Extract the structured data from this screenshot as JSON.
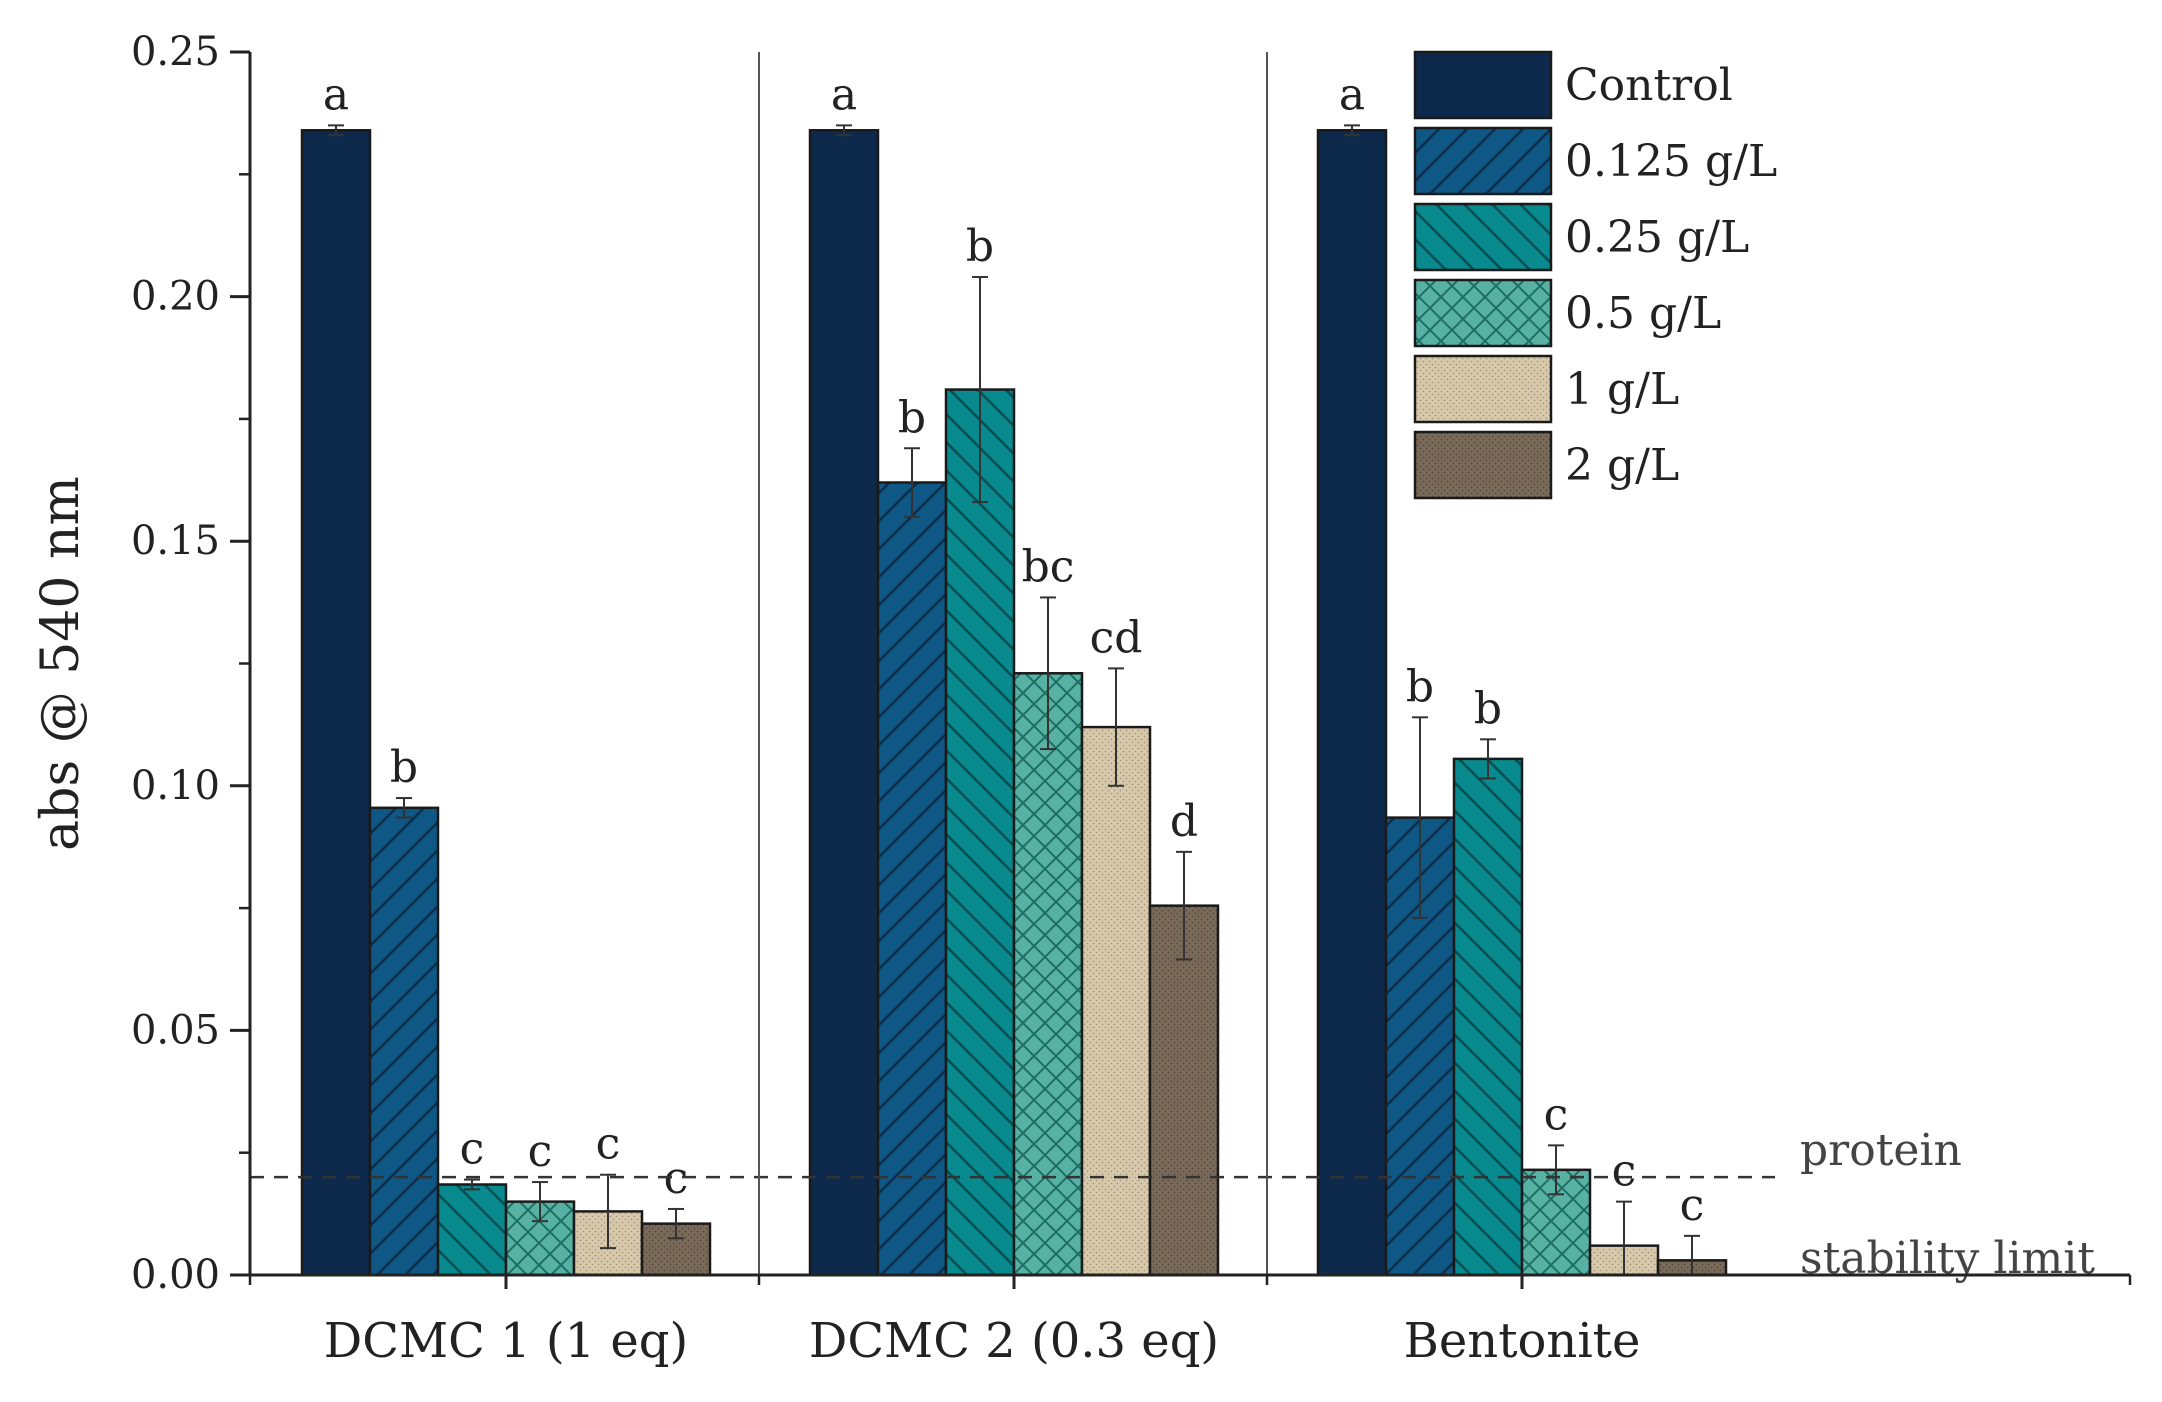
{
  "chart_data": {
    "type": "bar",
    "title": "",
    "xlabel": "",
    "ylabel": "abs @ 540 nm",
    "ylim": [
      0,
      0.25
    ],
    "yticks": [
      "0.00",
      "0.05",
      "0.10",
      "0.15",
      "0.20",
      "0.25"
    ],
    "categories": [
      "DCMC 1 (1 eq)",
      "DCMC 2 (0.3 eq)",
      "Bentonite"
    ],
    "series": [
      {
        "name": "Control",
        "color": "#0d2a4d",
        "pattern": "solid",
        "values": [
          0.234,
          0.234,
          0.234
        ],
        "errors": [
          0.001,
          0.001,
          0.001
        ],
        "labels": [
          "a",
          "a",
          "a"
        ]
      },
      {
        "name": "0.125 g/L",
        "color": "#0f5785",
        "pattern": "hatch-forward",
        "values": [
          0.0955,
          0.162,
          0.0935
        ],
        "errors": [
          0.002,
          0.007,
          0.0205
        ],
        "labels": [
          "b",
          "b",
          "b"
        ]
      },
      {
        "name": "0.25 g/L",
        "color": "#098a8e",
        "pattern": "hatch-backward",
        "values": [
          0.0185,
          0.181,
          0.1055
        ],
        "errors": [
          0.001,
          0.023,
          0.004
        ],
        "labels": [
          "c",
          "b",
          "b"
        ]
      },
      {
        "name": "0.5 g/L",
        "color": "#57b2a4",
        "pattern": "crosshatch",
        "values": [
          0.015,
          0.123,
          0.0215
        ],
        "errors": [
          0.004,
          0.0155,
          0.005
        ],
        "labels": [
          "c",
          "bc",
          "c"
        ]
      },
      {
        "name": "1 g/L",
        "color": "#d8c9ab",
        "pattern": "dots",
        "values": [
          0.013,
          0.112,
          0.006
        ],
        "errors": [
          0.0075,
          0.012,
          0.009
        ],
        "labels": [
          "c",
          "cd",
          "c"
        ]
      },
      {
        "name": "2 g/L",
        "color": "#7a6a5a",
        "pattern": "dots",
        "values": [
          0.0105,
          0.0755,
          0.003
        ],
        "errors": [
          0.003,
          0.011,
          0.005
        ],
        "labels": [
          "c",
          "d",
          "c"
        ]
      }
    ],
    "reference_line": {
      "value": 0.02,
      "style": "dashed",
      "label_line1": "protein",
      "label_line2": "stability limit"
    },
    "legend": {
      "position": "top-right"
    },
    "grid": false
  }
}
